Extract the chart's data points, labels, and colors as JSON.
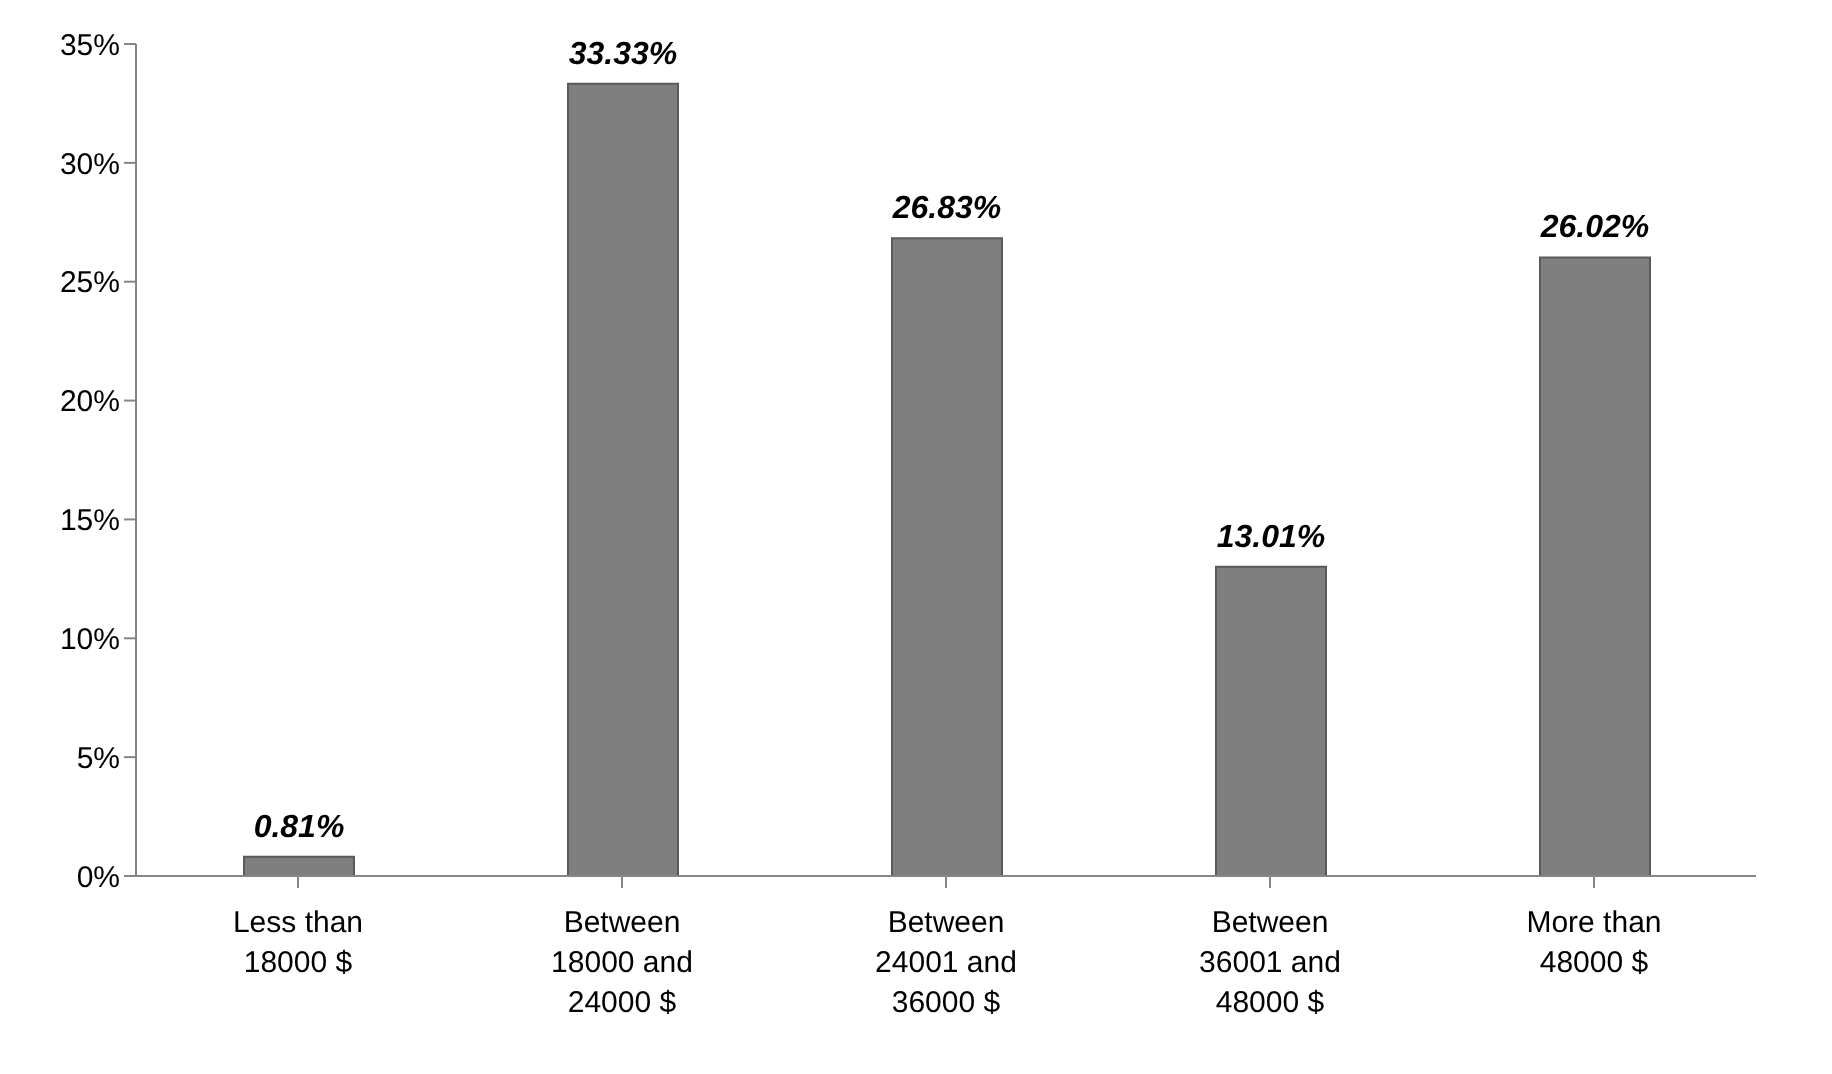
{
  "chart_data": {
    "type": "bar",
    "categories": [
      "Less than 18000 $",
      "Between 18000 and 24000 $",
      "Between 24001 and 36000 $",
      "Between 36001 and 48000 $",
      "More than 48000 $"
    ],
    "values": [
      0.81,
      33.33,
      26.83,
      13.01,
      26.02
    ],
    "value_labels": [
      "0.81%",
      "33.33%",
      "26.83%",
      "13.01%",
      "26.02%"
    ],
    "color": "#7f7f7f",
    "ylim": [
      0,
      35
    ],
    "yticks": [
      {
        "value": 0,
        "label": "0%"
      },
      {
        "value": 5,
        "label": "5%"
      },
      {
        "value": 10,
        "label": "10%"
      },
      {
        "value": 15,
        "label": "15%"
      },
      {
        "value": 20,
        "label": "20%"
      },
      {
        "value": 25,
        "label": "25%"
      },
      {
        "value": 30,
        "label": "30%"
      },
      {
        "value": 35,
        "label": "35%"
      }
    ],
    "grid": false
  }
}
